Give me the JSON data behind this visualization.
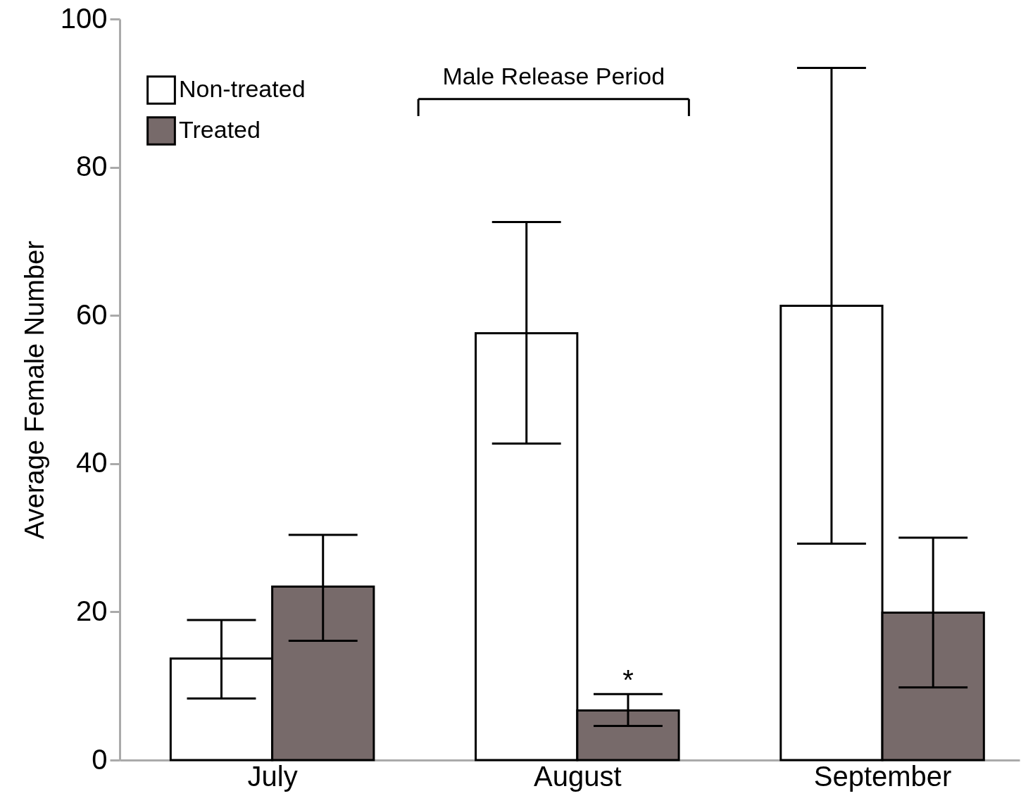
{
  "chart_data": {
    "type": "bar",
    "ylabel": "Average Female Number",
    "categories": [
      "July",
      "August",
      "September"
    ],
    "series": [
      {
        "name": "Non-treated",
        "color": "#ffffff",
        "values": [
          13.7,
          57.6,
          61.3
        ],
        "errors": [
          [
            8.3,
            18.9
          ],
          [
            42.7,
            72.6
          ],
          [
            29.2,
            93.4
          ]
        ]
      },
      {
        "name": "Treated",
        "color": "#776a6a",
        "values": [
          23.4,
          6.7,
          19.9
        ],
        "errors": [
          [
            16.1,
            30.4
          ],
          [
            4.6,
            8.9
          ],
          [
            9.8,
            30.0
          ]
        ]
      }
    ],
    "ylim": [
      0,
      100
    ],
    "yticks": [
      0,
      20,
      40,
      60,
      80,
      100
    ],
    "grid": false,
    "legend": "top left",
    "annotations": [
      "Male Release Period",
      {
        "text": "*",
        "x": "August",
        "y": 8.9
      }
    ]
  }
}
